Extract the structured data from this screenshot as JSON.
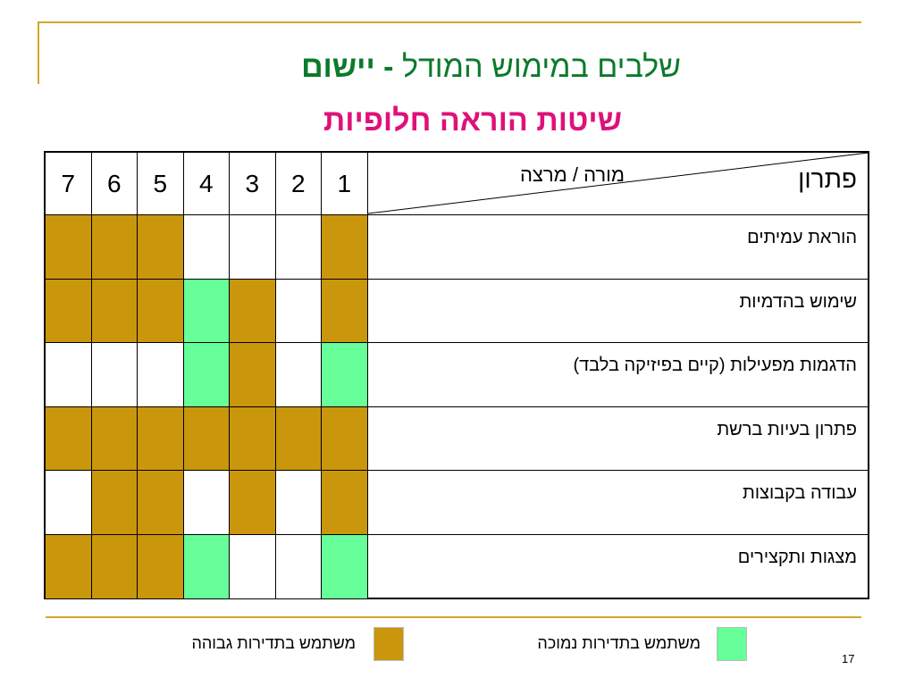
{
  "title": {
    "line1_prefix": "שלבים במימוש המודל",
    "line1_dash": "-",
    "line1_highlight": "יישום",
    "line2": "שיטות הוראה חלופיות"
  },
  "table": {
    "header": {
      "solution_label": "פתרון",
      "teacher_label": "מורה / מרצה",
      "columns": [
        "7",
        "6",
        "5",
        "4",
        "3",
        "2",
        "1"
      ]
    },
    "rows": [
      {
        "label": "הוראת עמיתים",
        "cells": [
          "high",
          "high",
          "high",
          "none",
          "none",
          "none",
          "high"
        ]
      },
      {
        "label": "שימוש בהדמיות",
        "cells": [
          "high",
          "high",
          "high",
          "low",
          "high",
          "none",
          "high"
        ]
      },
      {
        "label": "הדגמות מפעילות (קיים בפיזיקה בלבד)",
        "cells": [
          "none",
          "none",
          "none",
          "low",
          "high",
          "none",
          "low"
        ]
      },
      {
        "label": "פתרון בעיות ברשת",
        "cells": [
          "high",
          "high",
          "high",
          "high",
          "high",
          "high",
          "high"
        ]
      },
      {
        "label": "עבודה בקבוצות",
        "cells": [
          "none",
          "high",
          "high",
          "none",
          "high",
          "none",
          "high"
        ]
      },
      {
        "label": "מצגות ותקצירים",
        "cells": [
          "high",
          "high",
          "high",
          "low",
          "none",
          "none",
          "low"
        ]
      }
    ]
  },
  "legend": {
    "high_label": "משתמש בתדירות גבוהה",
    "low_label": "משתמש בתדירות נמוכה"
  },
  "colors": {
    "high": "#c9960c",
    "low": "#66ff99",
    "none": "#ffffff",
    "accent_line": "#d4a62a",
    "title_green": "#0b7a2b",
    "title_pink": "#e0107a"
  },
  "page_number": "17"
}
